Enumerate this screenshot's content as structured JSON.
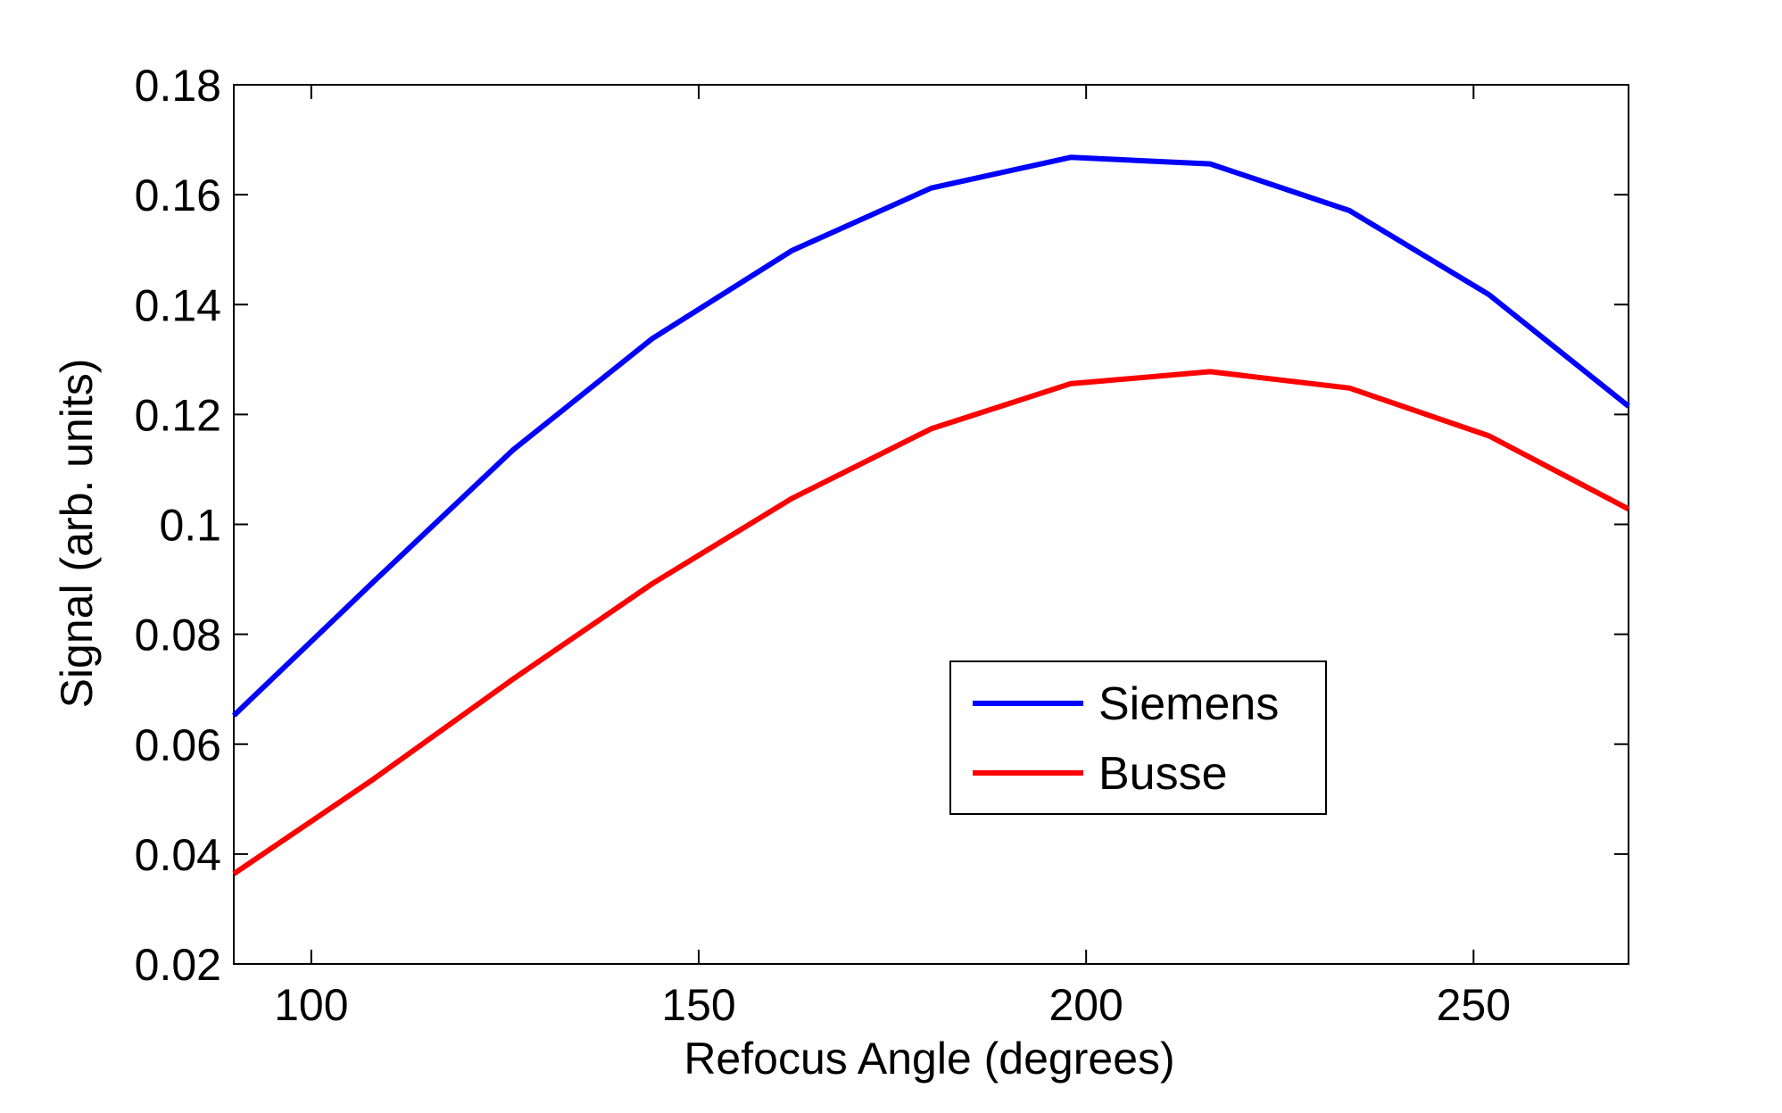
{
  "chart_data": {
    "type": "line",
    "title": "",
    "xlabel": "Refocus Angle (degrees)",
    "ylabel": "Signal (arb. units)",
    "xlim": [
      90,
      270
    ],
    "ylim": [
      0.02,
      0.18
    ],
    "x_ticks": [
      100,
      150,
      200,
      250
    ],
    "x_tick_labels": [
      "100",
      "150",
      "200",
      "250"
    ],
    "y_ticks": [
      0.02,
      0.04,
      0.06,
      0.08,
      0.1,
      0.12,
      0.14,
      0.16,
      0.18
    ],
    "y_tick_labels": [
      "0.02",
      "0.04",
      "0.06",
      "0.08",
      "0.1",
      "0.12",
      "0.14",
      "0.16",
      "0.18"
    ],
    "grid": false,
    "legend_position": "lower-right",
    "x": [
      90,
      108,
      126,
      144,
      162,
      180,
      198,
      216,
      234,
      252,
      270
    ],
    "series": [
      {
        "name": "Siemens",
        "color": "#0000ff",
        "values": [
          0.0652,
          0.0895,
          0.1135,
          0.1338,
          0.1498,
          0.1612,
          0.1668,
          0.1656,
          0.1571,
          0.1418,
          0.1215
        ]
      },
      {
        "name": "Busse",
        "color": "#ff0000",
        "values": [
          0.0364,
          0.0536,
          0.0718,
          0.0892,
          0.1047,
          0.1174,
          0.1256,
          0.1278,
          0.1248,
          0.1161,
          0.1028
        ]
      }
    ]
  }
}
